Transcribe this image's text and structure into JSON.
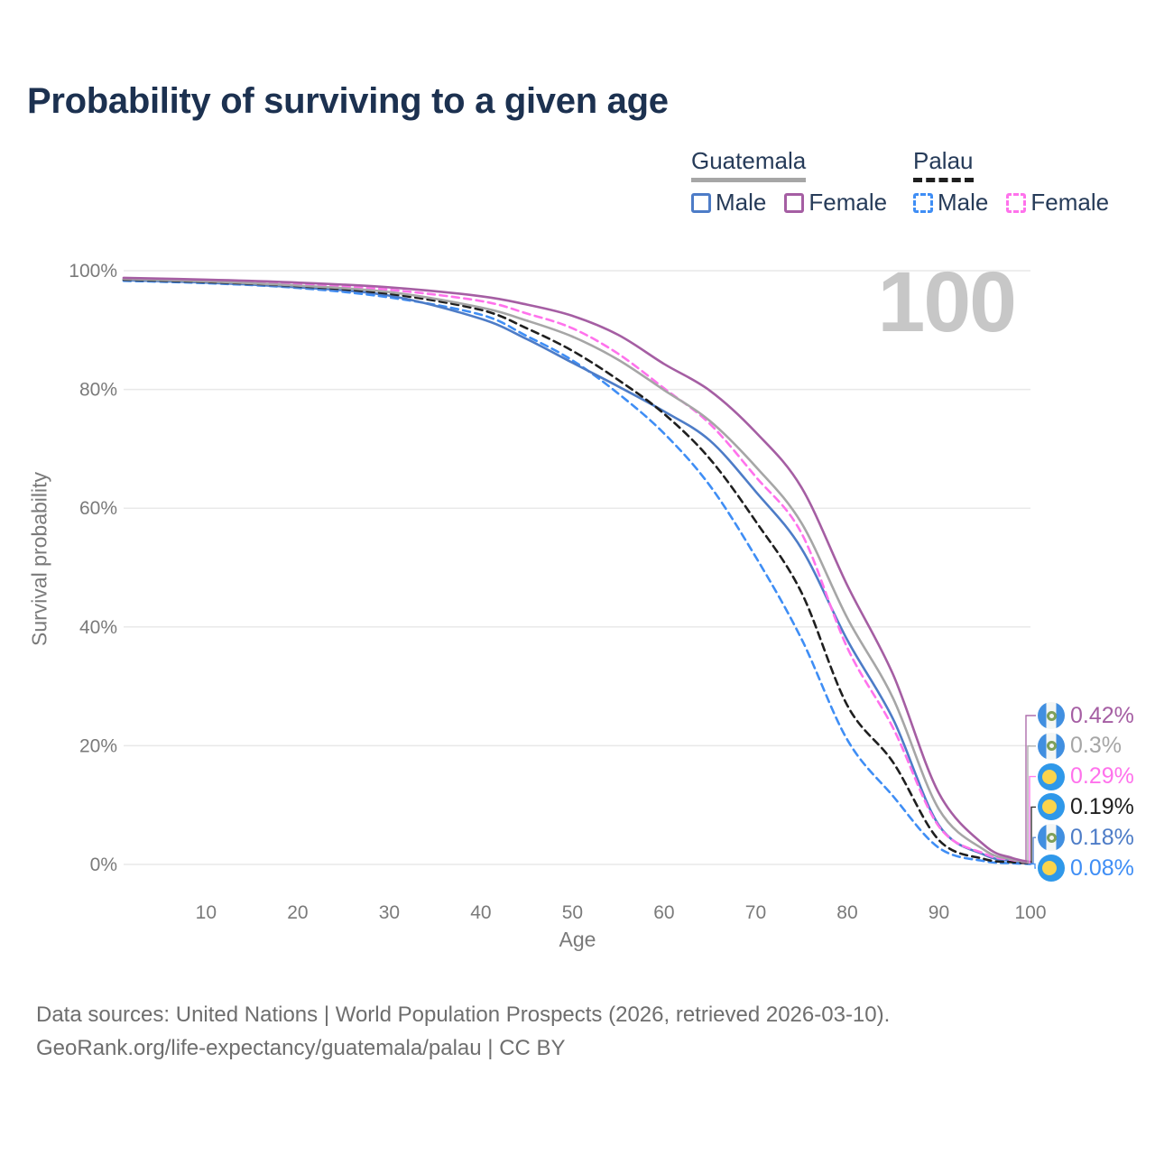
{
  "title": "Probability of surviving to a given age",
  "watermark": "100",
  "legend": {
    "groups": [
      {
        "country": "Guatemala",
        "line": {
          "style": "solid",
          "color": "#a6a6a6"
        },
        "items": [
          {
            "label": "Male",
            "color": "#4d7cc7",
            "dashed": false
          },
          {
            "label": "Female",
            "color": "#a55ea3",
            "dashed": false
          }
        ]
      },
      {
        "country": "Palau",
        "line": {
          "style": "dashed",
          "color": "#1f1f1f"
        },
        "items": [
          {
            "label": "Male",
            "color": "#3f8ef5",
            "dashed": true
          },
          {
            "label": "Female",
            "color": "#ff72ec",
            "dashed": true
          }
        ]
      }
    ]
  },
  "chart_data": {
    "type": "line",
    "title": "Probability of surviving to a given age",
    "xlabel": "Age",
    "ylabel": "Survival probability",
    "xlim": [
      1,
      100
    ],
    "ylim": [
      0,
      100
    ],
    "grid": "horizontal",
    "legend_position": "top-right",
    "x_ticks": [
      "10",
      "20",
      "30",
      "40",
      "50",
      "60",
      "70",
      "80",
      "90",
      "100"
    ],
    "y_ticks": [
      {
        "label": "0%",
        "value": 0
      },
      {
        "label": "20%",
        "value": 20
      },
      {
        "label": "40%",
        "value": 40
      },
      {
        "label": "60%",
        "value": 60
      },
      {
        "label": "80%",
        "value": 80
      },
      {
        "label": "100%",
        "value": 100
      }
    ],
    "x": [
      1,
      10,
      20,
      30,
      40,
      45,
      50,
      55,
      60,
      65,
      70,
      75,
      80,
      85,
      90,
      95,
      98,
      100
    ],
    "series": [
      {
        "name": "Guatemala Female",
        "country": "Guatemala",
        "sex": "Female",
        "color": "#a55ea3",
        "dash": false,
        "end_label": "0.42%",
        "values": [
          98.8,
          98.5,
          98.0,
          97.2,
          95.7,
          94.3,
          92.4,
          89.2,
          84.3,
          79.8,
          72.8,
          63.5,
          47.0,
          32.0,
          12.0,
          3.2,
          1.1,
          0.42
        ]
      },
      {
        "name": "Guatemala Both sexes",
        "country": "Guatemala",
        "sex": "Both",
        "color": "#a6a6a6",
        "dash": false,
        "end_label": "0.3%",
        "values": [
          98.6,
          98.2,
          97.5,
          96.4,
          93.8,
          91.6,
          88.9,
          85.0,
          79.9,
          74.7,
          67.0,
          57.5,
          41.5,
          28.0,
          9.3,
          2.4,
          0.85,
          0.3
        ]
      },
      {
        "name": "Palau Female",
        "country": "Palau",
        "sex": "Female",
        "color": "#ff72ec",
        "dash": true,
        "end_label": "0.29%",
        "values": [
          98.7,
          98.4,
          97.8,
          96.8,
          94.9,
          92.8,
          90.3,
          86.0,
          80.2,
          74.2,
          65.3,
          55.8,
          36.5,
          23.0,
          6.4,
          1.8,
          0.75,
          0.29
        ]
      },
      {
        "name": "Palau Both sexes",
        "country": "Palau",
        "sex": "Both",
        "color": "#1f1f1f",
        "dash": true,
        "end_label": "0.19%",
        "values": [
          98.5,
          98.1,
          97.4,
          96.1,
          93.4,
          90.3,
          86.5,
          81.6,
          75.9,
          68.3,
          57.8,
          45.8,
          26.8,
          17.2,
          4.1,
          0.9,
          0.4,
          0.19
        ]
      },
      {
        "name": "Guatemala Male",
        "country": "Guatemala",
        "sex": "Male",
        "color": "#4d7cc7",
        "dash": false,
        "end_label": "0.18%",
        "values": [
          98.4,
          98.0,
          97.2,
          95.8,
          91.9,
          88.5,
          84.5,
          80.5,
          76.3,
          71.4,
          62.8,
          53.2,
          37.8,
          24.5,
          6.6,
          1.6,
          0.6,
          0.18
        ]
      },
      {
        "name": "Palau Male",
        "country": "Palau",
        "sex": "Male",
        "color": "#3f8ef5",
        "dash": true,
        "end_label": "0.08%",
        "values": [
          98.3,
          97.9,
          97.1,
          95.5,
          92.6,
          89.0,
          84.9,
          79.3,
          72.6,
          63.8,
          51.8,
          38.0,
          21.0,
          11.5,
          2.8,
          0.55,
          0.22,
          0.08
        ]
      }
    ]
  },
  "footer": {
    "line1": "Data sources: United Nations | World Population Prospects (2026, retrieved 2026-03-10).",
    "line2": "GeoRank.org/life-expectancy/guatemala/palau | CC BY"
  }
}
